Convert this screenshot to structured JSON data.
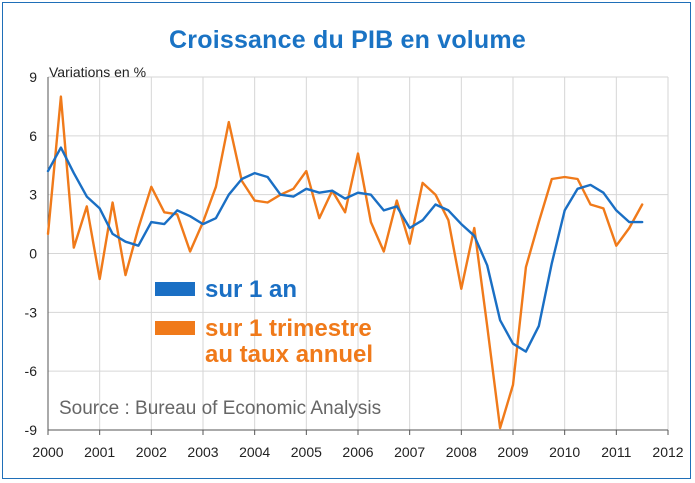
{
  "title": "Croissance du PIB en volume",
  "chart_data": {
    "type": "line",
    "title": "Croissance du PIB en volume",
    "ylabel": "Variations en %",
    "xlabel": "",
    "xlim": [
      2000,
      2012
    ],
    "ylim": [
      -9,
      9
    ],
    "xticks": [
      "2000",
      "2001",
      "2002",
      "2003",
      "2004",
      "2005",
      "2006",
      "2007",
      "2008",
      "2009",
      "2010",
      "2011",
      "2012"
    ],
    "yticks": [
      "9",
      "6",
      "3",
      "0",
      "-3",
      "-6",
      "-9"
    ],
    "grid": true,
    "legend_position": "center-left",
    "source": "Source : Bureau of Economic Analysis",
    "series": [
      {
        "name": "sur 1 an",
        "color": "#1a6fc4",
        "x": [
          2000.0,
          2000.25,
          2000.5,
          2000.75,
          2001.0,
          2001.25,
          2001.5,
          2001.75,
          2002.0,
          2002.25,
          2002.5,
          2002.75,
          2003.0,
          2003.25,
          2003.5,
          2003.75,
          2004.0,
          2004.25,
          2004.5,
          2004.75,
          2005.0,
          2005.25,
          2005.5,
          2005.75,
          2006.0,
          2006.25,
          2006.5,
          2006.75,
          2007.0,
          2007.25,
          2007.5,
          2007.75,
          2008.0,
          2008.25,
          2008.5,
          2008.75,
          2009.0,
          2009.25,
          2009.5,
          2009.75,
          2010.0,
          2010.25,
          2010.5,
          2010.75,
          2011.0,
          2011.25,
          2011.5
        ],
        "values": [
          4.2,
          5.4,
          4.1,
          2.9,
          2.3,
          1.0,
          0.6,
          0.4,
          1.6,
          1.5,
          2.2,
          1.9,
          1.5,
          1.8,
          3.0,
          3.8,
          4.1,
          3.9,
          3.0,
          2.9,
          3.3,
          3.1,
          3.2,
          2.8,
          3.1,
          3.0,
          2.2,
          2.4,
          1.3,
          1.7,
          2.5,
          2.2,
          1.5,
          0.9,
          -0.6,
          -3.4,
          -4.6,
          -5.0,
          -3.7,
          -0.5,
          2.2,
          3.3,
          3.5,
          3.1,
          2.2,
          1.6,
          1.6
        ]
      },
      {
        "name": "sur 1 trimestre au taux annuel",
        "name_line1": "sur 1 trimestre",
        "name_line2": "au taux annuel",
        "color": "#f07a1a",
        "x": [
          2000.0,
          2000.25,
          2000.5,
          2000.75,
          2001.0,
          2001.25,
          2001.5,
          2001.75,
          2002.0,
          2002.25,
          2002.5,
          2002.75,
          2003.0,
          2003.25,
          2003.5,
          2003.75,
          2004.0,
          2004.25,
          2004.5,
          2004.75,
          2005.0,
          2005.25,
          2005.5,
          2005.75,
          2006.0,
          2006.25,
          2006.5,
          2006.75,
          2007.0,
          2007.25,
          2007.5,
          2007.75,
          2008.0,
          2008.25,
          2008.5,
          2008.75,
          2009.0,
          2009.25,
          2009.5,
          2009.75,
          2010.0,
          2010.25,
          2010.5,
          2010.75,
          2011.0,
          2011.25,
          2011.5
        ],
        "values": [
          1.0,
          8.0,
          0.3,
          2.4,
          -1.3,
          2.6,
          -1.1,
          1.3,
          3.4,
          2.1,
          2.0,
          0.1,
          1.6,
          3.4,
          6.7,
          3.7,
          2.7,
          2.6,
          3.0,
          3.3,
          4.2,
          1.8,
          3.2,
          2.1,
          5.1,
          1.6,
          0.1,
          2.7,
          0.5,
          3.6,
          3.0,
          1.7,
          -1.8,
          1.3,
          -3.7,
          -8.9,
          -6.7,
          -0.7,
          1.6,
          3.8,
          3.9,
          3.8,
          2.5,
          2.3,
          0.4,
          1.3,
          2.5
        ]
      }
    ]
  }
}
